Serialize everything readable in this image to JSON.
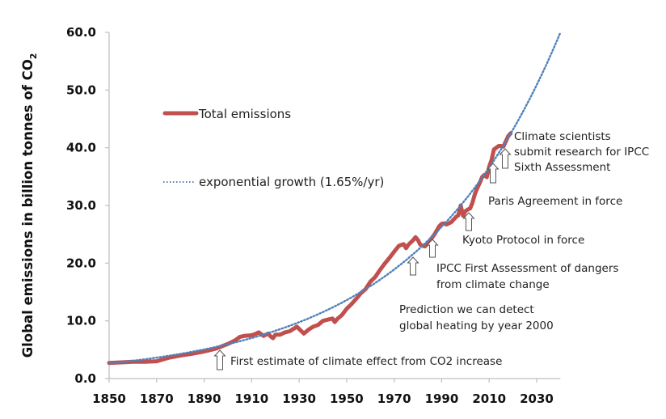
{
  "chart_data": {
    "type": "line",
    "title": "",
    "xlabel": "",
    "ylabel": "Global emissions in billion tonnes of CO",
    "ylabel_subscript": "2",
    "xlim": [
      1850,
      2040
    ],
    "ylim": [
      0,
      60
    ],
    "grid": false,
    "x_ticks": [
      1850,
      1870,
      1890,
      1910,
      1930,
      1950,
      1970,
      1990,
      2010,
      2030
    ],
    "x_tick_labels": [
      "1850",
      "1870",
      "1890",
      "1910",
      "1930",
      "1950",
      "1970",
      "1990",
      "2010",
      "2030"
    ],
    "y_ticks": [
      0,
      10,
      20,
      30,
      40,
      50,
      60
    ],
    "y_tick_labels": [
      "0.0",
      "10.0",
      "20.0",
      "30.0",
      "40.0",
      "50.0",
      "60.0"
    ],
    "legend": {
      "placement": "upper-left",
      "entries": [
        {
          "label": "Total emissions",
          "style": "solid",
          "color": "#c0504d"
        },
        {
          "label": "exponential growth (1.65%/yr)",
          "style": "dotted",
          "color": "#4f81bd"
        }
      ]
    },
    "series": [
      {
        "name": "Total emissions",
        "color": "#c0504d",
        "x": [
          1850,
          1855,
          1860,
          1865,
          1870,
          1875,
          1880,
          1885,
          1890,
          1895,
          1900,
          1903,
          1905,
          1907,
          1910,
          1912,
          1913,
          1915,
          1917,
          1918,
          1919,
          1920,
          1922,
          1924,
          1926,
          1928,
          1929,
          1930,
          1932,
          1934,
          1936,
          1938,
          1940,
          1942,
          1944,
          1945,
          1946,
          1948,
          1950,
          1952,
          1954,
          1956,
          1958,
          1960,
          1962,
          1964,
          1966,
          1968,
          1970,
          1972,
          1974,
          1975,
          1976,
          1978,
          1979,
          1980,
          1981,
          1982,
          1983,
          1985,
          1987,
          1989,
          1990,
          1991,
          1992,
          1994,
          1996,
          1997,
          1998,
          1999,
          2000,
          2001,
          2002,
          2003,
          2004,
          2005,
          2006,
          2007,
          2008,
          2009,
          2010,
          2011,
          2012,
          2013,
          2014,
          2015,
          2016,
          2017,
          2018,
          2019
        ],
        "values": [
          2.7,
          2.8,
          2.9,
          2.9,
          3.0,
          3.6,
          4.0,
          4.3,
          4.7,
          5.2,
          6.0,
          6.6,
          7.2,
          7.4,
          7.5,
          7.8,
          8.0,
          7.4,
          7.8,
          7.3,
          7.0,
          7.6,
          7.6,
          8.0,
          8.2,
          8.7,
          9.0,
          8.6,
          7.8,
          8.5,
          9.0,
          9.3,
          10.0,
          10.2,
          10.4,
          9.8,
          10.3,
          11.0,
          12.1,
          12.9,
          13.8,
          14.8,
          15.5,
          16.8,
          17.6,
          18.8,
          19.9,
          20.9,
          22.0,
          23.0,
          23.3,
          22.6,
          23.2,
          24.0,
          24.5,
          24.0,
          23.2,
          23.0,
          22.9,
          23.9,
          25.0,
          26.4,
          26.8,
          26.9,
          26.7,
          27.1,
          28.0,
          28.3,
          30.0,
          28.2,
          29.0,
          29.3,
          29.5,
          30.5,
          32.0,
          33.0,
          33.9,
          34.9,
          35.3,
          34.9,
          36.7,
          37.9,
          39.7,
          40.0,
          40.3,
          40.3,
          40.2,
          41.1,
          42.0,
          42.5
        ]
      },
      {
        "name": "exponential growth (1.65%/yr)",
        "color": "#4f81bd",
        "model": "exponential",
        "rate_per_year": 0.0165,
        "x_range": [
          1850,
          2040
        ],
        "value_at_2040": 60.0
      }
    ],
    "annotations": [
      {
        "year": 1896,
        "value_at_arrow": 5.5,
        "lines": [
          "First estimate of climate effect from CO2 increase"
        ]
      },
      {
        "year": 1979,
        "value_at_arrow": 22.0,
        "lines": [
          "Prediction we can detect",
          "global heating by year 2000"
        ]
      },
      {
        "year": 1990,
        "value_at_arrow": 23.5,
        "lines": [
          "IPCC First Assessment of dangers",
          "from climate change"
        ]
      },
      {
        "year": 2005,
        "value_at_arrow": 29.5,
        "lines": [
          "Kyoto Protocol in force"
        ]
      },
      {
        "year": 2016,
        "value_at_arrow": 37.0,
        "lines": [
          "Paris Agreement in force"
        ]
      },
      {
        "year": 2019,
        "value_at_arrow": 40.5,
        "lines": [
          "Climate scientists",
          "submit research for IPCC",
          "Sixth Assessment"
        ]
      }
    ]
  }
}
